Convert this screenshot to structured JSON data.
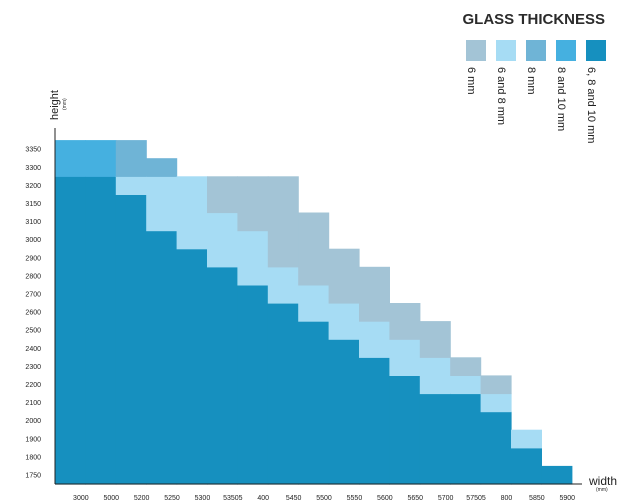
{
  "chart_data": {
    "type": "heatmap",
    "title": "GLASS THICKNESS",
    "xlabel": "width",
    "xunit": "(mm)",
    "ylabel": "height",
    "yunit": "(mm)",
    "x_ticks": [
      "3000",
      "5000",
      "5200",
      "5250",
      "5300",
      "53505",
      "400",
      "5450",
      "5500",
      "5550",
      "5600",
      "5650",
      "5700",
      "57505",
      "800",
      "5850",
      "5900"
    ],
    "y_ticks": [
      "1750",
      "1800",
      "1900",
      "2000",
      "2100",
      "2200",
      "2300",
      "2400",
      "2500",
      "2600",
      "2700",
      "2800",
      "2900",
      "3000",
      "3100",
      "3150",
      "3200",
      "3300",
      "3350"
    ],
    "legend": [
      {
        "key": "6",
        "label": "6 mm",
        "color": "#a3c4d6"
      },
      {
        "key": "68",
        "label": "6 and 8 mm",
        "color": "#a6dcf4"
      },
      {
        "key": "8",
        "label": "8 mm",
        "color": "#6fb4d6"
      },
      {
        "key": "810",
        "label": "8 and 10 mm",
        "color": "#45b0e0"
      },
      {
        "key": "6810",
        "label": "6, 8 and 10 mm",
        "color": "#1690bf"
      }
    ],
    "columns": [
      {
        "x": "3000",
        "segments": [
          {
            "to": "3200",
            "value": "6810"
          },
          {
            "to": "3350",
            "value": "810"
          }
        ]
      },
      {
        "x": "5000",
        "segments": [
          {
            "to": "3200",
            "value": "6810"
          },
          {
            "to": "3350",
            "value": "810"
          }
        ]
      },
      {
        "x": "5200",
        "segments": [
          {
            "to": "3150",
            "value": "6810"
          },
          {
            "to": "3200",
            "value": "68"
          },
          {
            "to": "3350",
            "value": "8"
          }
        ]
      },
      {
        "x": "5250",
        "segments": [
          {
            "to": "3000",
            "value": "6810"
          },
          {
            "to": "3200",
            "value": "68"
          },
          {
            "to": "3300",
            "value": "8"
          }
        ]
      },
      {
        "x": "5300",
        "segments": [
          {
            "to": "2900",
            "value": "6810"
          },
          {
            "to": "3200",
            "value": "68"
          }
        ]
      },
      {
        "x": "53505",
        "segments": [
          {
            "to": "2800",
            "value": "6810"
          },
          {
            "to": "3100",
            "value": "68"
          },
          {
            "to": "3200",
            "value": "6"
          }
        ]
      },
      {
        "x": "400",
        "segments": [
          {
            "to": "2700",
            "value": "6810"
          },
          {
            "to": "3000",
            "value": "68"
          },
          {
            "to": "3200",
            "value": "6"
          }
        ]
      },
      {
        "x": "5450",
        "segments": [
          {
            "to": "2600",
            "value": "6810"
          },
          {
            "to": "2800",
            "value": "68"
          },
          {
            "to": "3200",
            "value": "6"
          }
        ]
      },
      {
        "x": "5500",
        "segments": [
          {
            "to": "2500",
            "value": "6810"
          },
          {
            "to": "2700",
            "value": "68"
          },
          {
            "to": "3100",
            "value": "6"
          }
        ]
      },
      {
        "x": "5550",
        "segments": [
          {
            "to": "2400",
            "value": "6810"
          },
          {
            "to": "2600",
            "value": "68"
          },
          {
            "to": "2900",
            "value": "6"
          }
        ]
      },
      {
        "x": "5600",
        "segments": [
          {
            "to": "2300",
            "value": "6810"
          },
          {
            "to": "2500",
            "value": "68"
          },
          {
            "to": "2800",
            "value": "6"
          }
        ]
      },
      {
        "x": "5650",
        "segments": [
          {
            "to": "2200",
            "value": "6810"
          },
          {
            "to": "2400",
            "value": "68"
          },
          {
            "to": "2600",
            "value": "6"
          }
        ]
      },
      {
        "x": "5700",
        "segments": [
          {
            "to": "2100",
            "value": "6810"
          },
          {
            "to": "2300",
            "value": "68"
          },
          {
            "to": "2500",
            "value": "6"
          }
        ]
      },
      {
        "x": "57505",
        "segments": [
          {
            "to": "2100",
            "value": "6810"
          },
          {
            "to": "2200",
            "value": "68"
          },
          {
            "to": "2300",
            "value": "6"
          }
        ]
      },
      {
        "x": "800",
        "segments": [
          {
            "to": "2000",
            "value": "6810"
          },
          {
            "to": "2100",
            "value": "68"
          },
          {
            "to": "2200",
            "value": "6"
          }
        ]
      },
      {
        "x": "5850",
        "segments": [
          {
            "to": "1800",
            "value": "6810"
          },
          {
            "to": "1900",
            "value": "68"
          }
        ]
      },
      {
        "x": "5900",
        "segments": [
          {
            "to": "1750",
            "value": "6810"
          }
        ]
      }
    ]
  }
}
